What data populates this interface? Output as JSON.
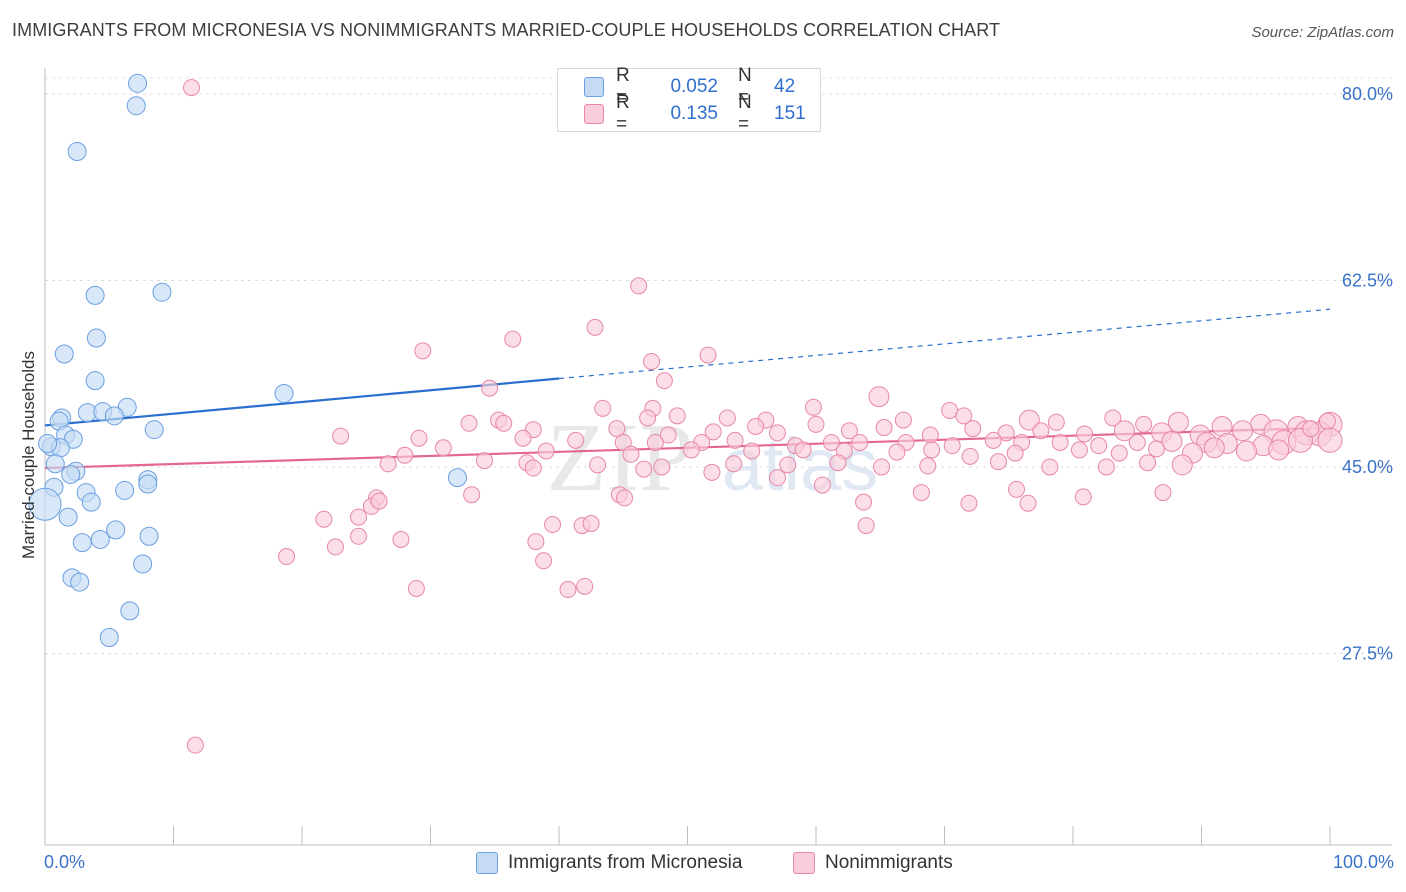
{
  "title": "IMMIGRANTS FROM MICRONESIA VS NONIMMIGRANTS MARRIED-COUPLE HOUSEHOLDS CORRELATION CHART",
  "source": "Source: ZipAtlas.com",
  "watermark": {
    "zip": "ZIP",
    "atlas": "atlas"
  },
  "colors": {
    "blue": "#6a9fe0",
    "blue_fill": "#c5dbf5",
    "blue_line": "#2a6fcf",
    "pink": "#e887a8",
    "pink_fill": "#f9cdda",
    "pink_line": "#e36790",
    "tick_label": "#3a72c8"
  },
  "legend_top": [
    {
      "r_label": "R =",
      "r_value": "0.052",
      "n_label": "N =",
      "n_value": "42"
    },
    {
      "r_label": "R =",
      "r_value": "0.135",
      "n_label": "N =",
      "n_value": "151"
    }
  ],
  "legend_bottom": [
    "Immigrants from Micronesia",
    "Nonimmigrants"
  ],
  "chart_data": {
    "type": "scatter",
    "title": "IMMIGRANTS FROM MICRONESIA VS NONIMMIGRANTS MARRIED-COUPLE HOUSEHOLDS CORRELATION CHART",
    "xlabel": "",
    "ylabel": "Married-couple Households",
    "x_tick_labels": [
      "0.0%",
      "100.0%"
    ],
    "y_tick_labels": [
      "80.0%",
      "62.5%",
      "45.0%",
      "27.5%"
    ],
    "y_ticks": [
      80.0,
      62.5,
      45.0,
      27.5
    ],
    "xlim": [
      0,
      100
    ],
    "ylim": [
      10.0,
      83.0
    ],
    "grid": "horizontal dashed",
    "legend_position": "top-center",
    "series": [
      {
        "name": "Immigrants from Micronesia",
        "color": "#6a9fe0",
        "R": 0.052,
        "N": 42,
        "trend": {
          "x0": 0,
          "y0": 48.9,
          "x1": 40,
          "y1": 53.3,
          "dashed_to_x": 100,
          "dashed_to_y": 59.8
        },
        "points": [
          [
            7.2,
            81.0
          ],
          [
            7.1,
            78.9
          ],
          [
            2.5,
            74.6
          ],
          [
            9.1,
            61.4
          ],
          [
            3.9,
            61.1
          ],
          [
            4.0,
            57.1
          ],
          [
            1.5,
            55.6
          ],
          [
            3.9,
            53.1
          ],
          [
            18.6,
            51.9
          ],
          [
            6.4,
            50.6
          ],
          [
            3.3,
            50.1
          ],
          [
            4.5,
            50.2
          ],
          [
            5.4,
            49.8
          ],
          [
            1.3,
            49.6
          ],
          [
            1.1,
            49.3
          ],
          [
            8.5,
            48.5
          ],
          [
            1.6,
            48.0
          ],
          [
            2.2,
            47.6
          ],
          [
            0.5,
            46.9
          ],
          [
            1.2,
            46.8
          ],
          [
            0.8,
            45.3
          ],
          [
            2.4,
            44.6
          ],
          [
            2.0,
            44.3
          ],
          [
            32.1,
            44.0
          ],
          [
            8.0,
            43.8
          ],
          [
            8.0,
            43.4
          ],
          [
            0.7,
            43.1
          ],
          [
            3.2,
            42.6
          ],
          [
            6.2,
            42.8
          ],
          [
            3.6,
            41.7
          ],
          [
            1.8,
            40.3
          ],
          [
            0.0,
            41.5
          ],
          [
            5.5,
            39.1
          ],
          [
            4.3,
            38.2
          ],
          [
            2.9,
            37.9
          ],
          [
            8.1,
            38.5
          ],
          [
            7.6,
            35.9
          ],
          [
            2.1,
            34.6
          ],
          [
            2.7,
            34.2
          ],
          [
            6.6,
            31.5
          ],
          [
            5.0,
            29.0
          ],
          [
            0.2,
            47.2
          ]
        ],
        "sizes": [
          9,
          9,
          9,
          9,
          9,
          9,
          9,
          9,
          9,
          9,
          9,
          9,
          9,
          9,
          9,
          9,
          9,
          9,
          9,
          9,
          9,
          9,
          9,
          9,
          9,
          9,
          9,
          9,
          9,
          9,
          9,
          16,
          9,
          9,
          9,
          9,
          9,
          9,
          9,
          9,
          9,
          9
        ]
      },
      {
        "name": "Nonimmigrants",
        "color": "#e887a8",
        "R": 0.135,
        "N": 151,
        "trend": {
          "x0": 0,
          "y0": 44.9,
          "x1": 100,
          "y1": 48.7
        },
        "points": [
          [
            11.4,
            80.6
          ],
          [
            46.2,
            62.0
          ],
          [
            42.8,
            58.1
          ],
          [
            36.4,
            57.0
          ],
          [
            29.4,
            55.9
          ],
          [
            47.2,
            54.9
          ],
          [
            51.6,
            55.5
          ],
          [
            48.2,
            53.1
          ],
          [
            34.6,
            52.4
          ],
          [
            64.9,
            51.6
          ],
          [
            59.8,
            50.6
          ],
          [
            70.4,
            50.3
          ],
          [
            47.3,
            50.5
          ],
          [
            43.4,
            50.5
          ],
          [
            46.9,
            49.6
          ],
          [
            49.2,
            49.8
          ],
          [
            53.1,
            49.6
          ],
          [
            56.1,
            49.4
          ],
          [
            60.0,
            49.0
          ],
          [
            66.8,
            49.4
          ],
          [
            71.5,
            49.8
          ],
          [
            76.6,
            49.4
          ],
          [
            78.7,
            49.2
          ],
          [
            83.1,
            49.6
          ],
          [
            85.5,
            49.0
          ],
          [
            88.2,
            49.2
          ],
          [
            91.6,
            48.8
          ],
          [
            94.6,
            49.0
          ],
          [
            97.5,
            48.8
          ],
          [
            100.0,
            49.0
          ],
          [
            33.0,
            49.1
          ],
          [
            35.3,
            49.4
          ],
          [
            35.7,
            49.1
          ],
          [
            38.0,
            48.5
          ],
          [
            44.5,
            48.6
          ],
          [
            48.5,
            48.0
          ],
          [
            52.0,
            48.3
          ],
          [
            55.3,
            48.8
          ],
          [
            57.0,
            48.2
          ],
          [
            62.6,
            48.4
          ],
          [
            65.3,
            48.7
          ],
          [
            68.9,
            48.0
          ],
          [
            72.2,
            48.6
          ],
          [
            74.8,
            48.2
          ],
          [
            77.5,
            48.4
          ],
          [
            80.9,
            48.1
          ],
          [
            84.0,
            48.4
          ],
          [
            86.9,
            48.2
          ],
          [
            89.9,
            48.0
          ],
          [
            93.2,
            48.4
          ],
          [
            95.8,
            48.3
          ],
          [
            98.2,
            48.2
          ],
          [
            99.2,
            48.1
          ],
          [
            23.0,
            47.9
          ],
          [
            29.1,
            47.7
          ],
          [
            37.2,
            47.7
          ],
          [
            41.3,
            47.5
          ],
          [
            45.0,
            47.3
          ],
          [
            47.5,
            47.3
          ],
          [
            51.1,
            47.3
          ],
          [
            53.7,
            47.5
          ],
          [
            58.4,
            47.0
          ],
          [
            61.2,
            47.3
          ],
          [
            63.4,
            47.3
          ],
          [
            67.0,
            47.3
          ],
          [
            70.6,
            47.0
          ],
          [
            73.8,
            47.5
          ],
          [
            76.0,
            47.3
          ],
          [
            79.0,
            47.3
          ],
          [
            82.0,
            47.0
          ],
          [
            85.0,
            47.3
          ],
          [
            87.7,
            47.4
          ],
          [
            90.4,
            47.3
          ],
          [
            92.0,
            47.2
          ],
          [
            94.8,
            47.0
          ],
          [
            96.4,
            47.3
          ],
          [
            97.7,
            47.5
          ],
          [
            31.0,
            46.8
          ],
          [
            39.0,
            46.5
          ],
          [
            45.6,
            46.2
          ],
          [
            50.3,
            46.6
          ],
          [
            55.0,
            46.5
          ],
          [
            59.0,
            46.6
          ],
          [
            62.2,
            46.5
          ],
          [
            66.3,
            46.4
          ],
          [
            69.0,
            46.6
          ],
          [
            72.0,
            46.0
          ],
          [
            75.5,
            46.3
          ],
          [
            80.5,
            46.6
          ],
          [
            83.6,
            46.3
          ],
          [
            86.5,
            46.7
          ],
          [
            89.3,
            46.3
          ],
          [
            91.0,
            46.8
          ],
          [
            93.5,
            46.5
          ],
          [
            96.0,
            46.6
          ],
          [
            28.0,
            46.1
          ],
          [
            34.2,
            45.6
          ],
          [
            37.5,
            45.4
          ],
          [
            43.0,
            45.2
          ],
          [
            48.0,
            45.0
          ],
          [
            53.6,
            45.3
          ],
          [
            57.8,
            45.2
          ],
          [
            61.7,
            45.4
          ],
          [
            65.1,
            45.0
          ],
          [
            68.7,
            45.1
          ],
          [
            74.2,
            45.5
          ],
          [
            78.2,
            45.0
          ],
          [
            82.6,
            45.0
          ],
          [
            85.8,
            45.4
          ],
          [
            88.5,
            45.2
          ],
          [
            26.7,
            45.3
          ],
          [
            38.0,
            44.9
          ],
          [
            46.6,
            44.8
          ],
          [
            51.9,
            44.5
          ],
          [
            57.0,
            44.0
          ],
          [
            60.5,
            43.3
          ],
          [
            68.2,
            42.6
          ],
          [
            75.6,
            42.9
          ],
          [
            80.8,
            42.2
          ],
          [
            87.0,
            42.6
          ],
          [
            25.8,
            42.1
          ],
          [
            33.2,
            42.4
          ],
          [
            44.7,
            42.4
          ],
          [
            45.1,
            42.1
          ],
          [
            63.7,
            41.7
          ],
          [
            71.9,
            41.6
          ],
          [
            76.5,
            41.6
          ],
          [
            21.7,
            40.1
          ],
          [
            25.4,
            41.3
          ],
          [
            26.0,
            41.8
          ],
          [
            24.4,
            40.3
          ],
          [
            39.5,
            39.6
          ],
          [
            41.8,
            39.5
          ],
          [
            42.5,
            39.7
          ],
          [
            63.9,
            39.5
          ],
          [
            24.4,
            38.5
          ],
          [
            27.7,
            38.2
          ],
          [
            38.2,
            38.0
          ],
          [
            22.6,
            37.5
          ],
          [
            38.8,
            36.2
          ],
          [
            18.8,
            36.6
          ],
          [
            28.9,
            33.6
          ],
          [
            40.7,
            33.5
          ],
          [
            42.0,
            33.8
          ],
          [
            11.7,
            18.9
          ],
          [
            98.5,
            48.6
          ],
          [
            99.8,
            49.3
          ],
          [
            100.0,
            47.5
          ]
        ],
        "sizes": [
          8,
          8,
          8,
          8,
          8,
          8,
          8,
          8,
          8,
          10,
          8,
          8,
          8,
          8,
          8,
          8,
          8,
          8,
          8,
          8,
          8,
          10,
          8,
          8,
          8,
          10,
          10,
          10,
          10,
          12,
          8,
          8,
          8,
          8,
          8,
          8,
          8,
          8,
          8,
          8,
          8,
          8,
          8,
          8,
          8,
          8,
          10,
          10,
          10,
          10,
          12,
          12,
          12,
          8,
          8,
          8,
          8,
          8,
          8,
          8,
          8,
          8,
          8,
          8,
          8,
          8,
          8,
          8,
          8,
          8,
          8,
          10,
          10,
          10,
          10,
          12,
          12,
          8,
          8,
          8,
          8,
          8,
          8,
          8,
          8,
          8,
          8,
          8,
          8,
          8,
          8,
          10,
          10,
          10,
          10,
          8,
          8,
          8,
          8,
          8,
          8,
          8,
          8,
          8,
          8,
          8,
          8,
          8,
          8,
          10,
          8,
          8,
          8,
          8,
          8,
          8,
          8,
          8,
          8,
          8,
          8,
          8,
          8,
          8,
          8,
          8,
          8,
          8,
          8,
          8,
          8,
          8,
          8,
          8,
          8,
          8,
          8,
          8,
          8,
          8,
          8,
          8,
          8,
          8,
          8,
          8,
          8,
          12,
          12,
          12
        ]
      }
    ]
  }
}
